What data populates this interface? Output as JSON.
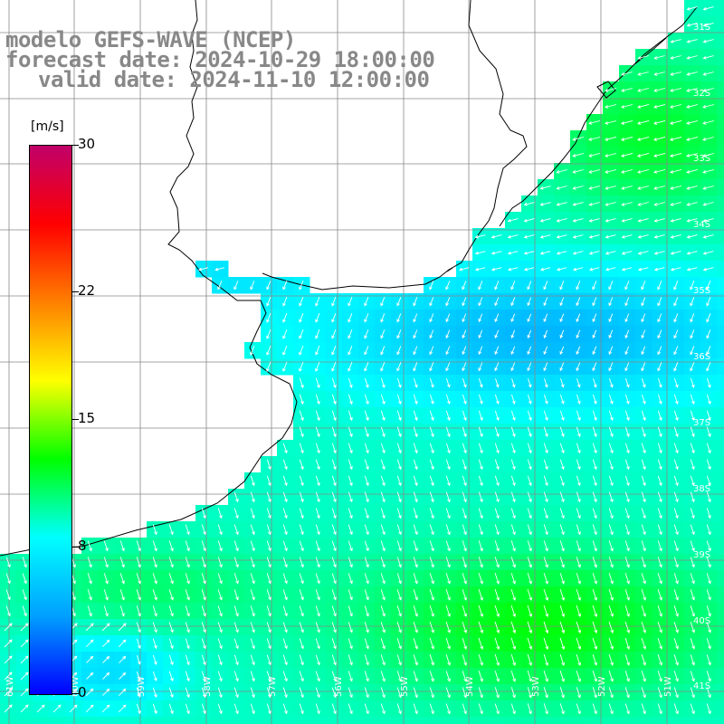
{
  "title": {
    "model": "modelo GEFS-WAVE (NCEP)",
    "forecast": "forecast date: 2024-10-29 18:00:00",
    "valid": "valid date: 2024-11-10 12:00:00"
  },
  "colorbar": {
    "unit": "[m/s]",
    "min": 0,
    "max": 30,
    "ticks": [
      "30",
      "22",
      "15",
      "8",
      "0"
    ],
    "tick_values": [
      30,
      22,
      15,
      8,
      0
    ],
    "colors": [
      "#0000ff",
      "#00a0ff",
      "#00ffff",
      "#00ff00",
      "#ffff00",
      "#ff8000",
      "#ff0000",
      "#c0006a"
    ]
  },
  "grid": {
    "lon_labels": [
      "61W",
      "60W",
      "59W",
      "58W",
      "57W",
      "56W",
      "55W",
      "54W",
      "53W",
      "52W",
      "51W"
    ],
    "lat_labels": [
      "31S",
      "32S",
      "33S",
      "34S",
      "35S",
      "36S",
      "37S",
      "38S",
      "39S",
      "40S",
      "41S"
    ],
    "lon_range": [
      -62,
      -51
    ],
    "lat_range": [
      -30.5,
      -41.5
    ]
  },
  "colors": {
    "land": "#ffffff",
    "coast": "#000000",
    "grid": "#888888",
    "arrows": "#ffffff"
  }
}
